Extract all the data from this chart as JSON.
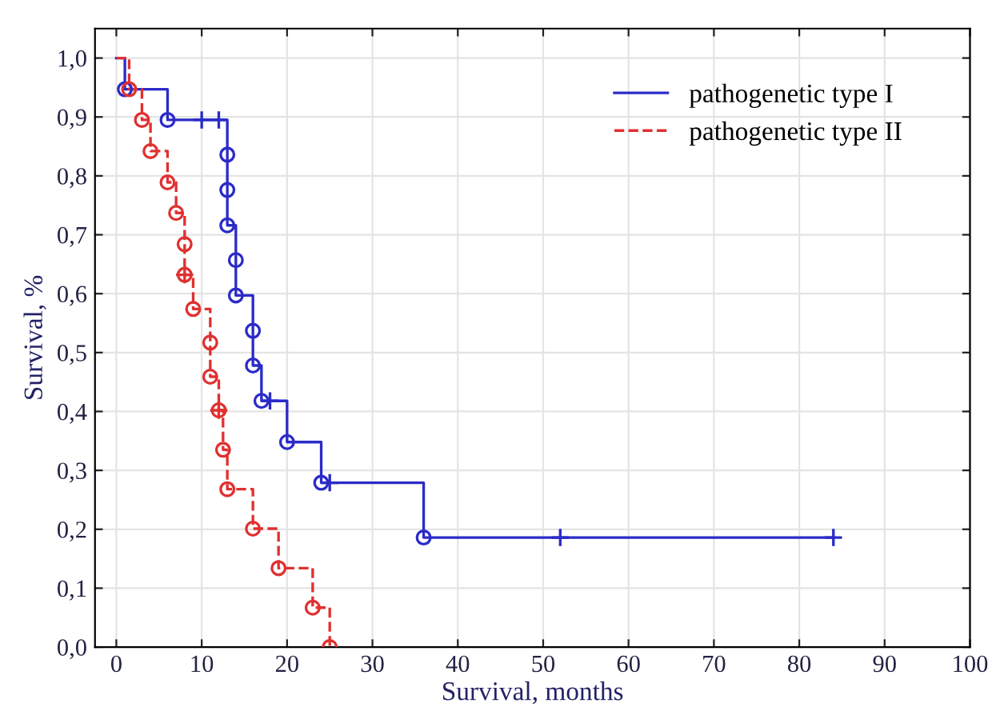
{
  "chart_data": {
    "type": "step",
    "xlabel": "Survival, months",
    "ylabel": "Survival, %",
    "xlim": [
      -2.5,
      100
    ],
    "xticks": [
      0,
      10,
      20,
      30,
      40,
      50,
      60,
      70,
      80,
      90,
      100
    ],
    "ylim": [
      0,
      1.05
    ],
    "yticks": [
      {
        "value": 0,
        "label": "0,0"
      },
      {
        "value": 0.1,
        "label": "0,1"
      },
      {
        "value": 0.2,
        "label": "0,2"
      },
      {
        "value": 0.3,
        "label": "0,3"
      },
      {
        "value": 0.4,
        "label": "0,4"
      },
      {
        "value": 0.5,
        "label": "0,5"
      },
      {
        "value": 0.6,
        "label": "0,6"
      },
      {
        "value": 0.7,
        "label": "0,7"
      },
      {
        "value": 0.8,
        "label": "0,8"
      },
      {
        "value": 0.9,
        "label": "0,9"
      },
      {
        "value": 1.0,
        "label": "1,0"
      }
    ],
    "grid": true,
    "legend": "top right",
    "series": [
      {
        "name": "pathogenetic type I",
        "color": "#2b2bc8",
        "line_style": "solid",
        "marker": "none",
        "x": [
          0,
          1,
          6,
          13,
          13,
          13,
          14,
          14,
          16,
          16,
          17,
          20,
          24,
          36,
          84
        ],
        "values": [
          1.0,
          0.947,
          0.895,
          0.836,
          0.776,
          0.716,
          0.657,
          0.597,
          0.537,
          0.478,
          0.418,
          0.348,
          0.279,
          0.186,
          0.186
        ]
      },
      {
        "name": "pathogenetic type II",
        "color": "#e03030",
        "line_style": "dashed",
        "marker": "none",
        "x": [
          0,
          1.5,
          3,
          4,
          6,
          7,
          8,
          8,
          9,
          11,
          11,
          12,
          12.5,
          13,
          16,
          19,
          23,
          25
        ],
        "values": [
          1.0,
          0.947,
          0.895,
          0.842,
          0.789,
          0.737,
          0.684,
          0.632,
          0.574,
          0.517,
          0.459,
          0.402,
          0.335,
          0.268,
          0.201,
          0.134,
          0.067,
          0.0
        ]
      },
      {
        "type": "scatter",
        "color": "#2b2bc8",
        "marker": "circle",
        "x": [
          1,
          6,
          13,
          13,
          13,
          14,
          14,
          16,
          16,
          17,
          20,
          24,
          36
        ],
        "values": [
          0.947,
          0.895,
          0.836,
          0.776,
          0.716,
          0.657,
          0.597,
          0.537,
          0.478,
          0.418,
          0.348,
          0.279,
          0.186
        ]
      },
      {
        "type": "scatter",
        "color": "#e03030",
        "marker": "circle",
        "x": [
          1.5,
          3,
          4,
          6,
          7,
          8,
          8,
          9,
          11,
          11,
          12,
          12.5,
          13,
          16,
          19,
          23,
          25
        ],
        "values": [
          0.947,
          0.895,
          0.842,
          0.789,
          0.737,
          0.684,
          0.632,
          0.574,
          0.517,
          0.459,
          0.402,
          0.335,
          0.268,
          0.201,
          0.134,
          0.067,
          0.0
        ]
      },
      {
        "type": "scatter",
        "color": "#2b2bc8",
        "marker": "cross",
        "x": [
          10,
          12,
          18,
          25,
          52,
          84
        ],
        "values": [
          0.895,
          0.895,
          0.418,
          0.279,
          0.186,
          0.186
        ]
      },
      {
        "type": "scatter",
        "color": "#e03030",
        "marker": "cross",
        "x": [
          8,
          12
        ],
        "values": [
          0.632,
          0.402
        ]
      }
    ]
  }
}
